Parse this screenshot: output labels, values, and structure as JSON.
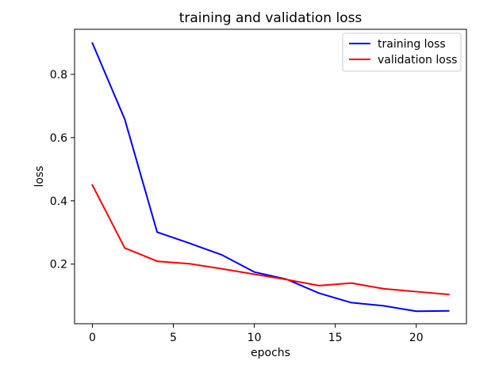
{
  "chart_data": {
    "type": "line",
    "title": "training and validation loss",
    "xlabel": "epochs",
    "ylabel": "loss",
    "xlim": [
      -1.1,
      23.1
    ],
    "ylim": [
      0.0115,
      0.9425
    ],
    "xticks": [
      0,
      5,
      10,
      15,
      20
    ],
    "yticks": [
      0.2,
      0.4,
      0.6,
      0.8
    ],
    "xtick_labels": [
      "0",
      "5",
      "10",
      "15",
      "20"
    ],
    "ytick_labels": [
      "0.2",
      "0.4",
      "0.6",
      "0.8"
    ],
    "grid": false,
    "legend_position": "upper right",
    "x": [
      0,
      2,
      4,
      6,
      8,
      10,
      12,
      14,
      16,
      18,
      20,
      22
    ],
    "series": [
      {
        "name": "training loss",
        "color": "#0000ff",
        "values": [
          0.899,
          0.658,
          0.301,
          0.266,
          0.229,
          0.175,
          0.152,
          0.108,
          0.078,
          0.068,
          0.051,
          0.052
        ]
      },
      {
        "name": "validation loss",
        "color": "#ff0000",
        "values": [
          0.45,
          0.251,
          0.209,
          0.201,
          0.185,
          0.168,
          0.151,
          0.132,
          0.14,
          0.122,
          0.113,
          0.104
        ]
      }
    ]
  }
}
